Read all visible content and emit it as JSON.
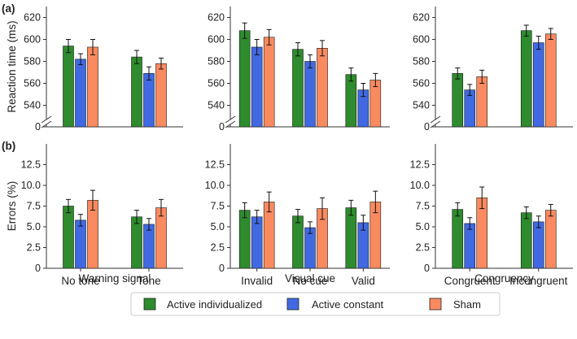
{
  "panel_labels": {
    "a": "(a)",
    "b": "(b)"
  },
  "colors": {
    "Active individualized": "#2e8b2e",
    "Active constant": "#4169e1",
    "Sham": "#fa8a60",
    "axis": "#333333",
    "error": "#111111"
  },
  "legend": [
    "Active individualized",
    "Active constant",
    "Sham"
  ],
  "chart_data": [
    {
      "id": "a1",
      "row": "a",
      "type": "bar",
      "title": "",
      "xlabel": "",
      "ylabel": "Reaction time (ms)",
      "ylim": [
        530,
        630
      ],
      "axis_break": true,
      "zero_label": "0",
      "yticks": [
        540,
        560,
        580,
        600,
        620
      ],
      "categories": [
        "No tone",
        "Tone"
      ],
      "series": [
        {
          "name": "Active individualized",
          "values": [
            594,
            584
          ],
          "errors": [
            6,
            6
          ]
        },
        {
          "name": "Active constant",
          "values": [
            582,
            569
          ],
          "errors": [
            5,
            6
          ]
        },
        {
          "name": "Sham",
          "values": [
            593,
            578
          ],
          "errors": [
            7,
            5
          ]
        }
      ]
    },
    {
      "id": "a2",
      "row": "a",
      "type": "bar",
      "title": "",
      "xlabel": "",
      "ylabel": "",
      "ylim": [
        530,
        630
      ],
      "axis_break": true,
      "zero_label": "0",
      "yticks": [
        540,
        560,
        580,
        600,
        620
      ],
      "categories": [
        "Invalid",
        "No cue",
        "Valid"
      ],
      "series": [
        {
          "name": "Active individualized",
          "values": [
            608,
            591,
            568
          ],
          "errors": [
            7,
            6,
            6
          ]
        },
        {
          "name": "Active constant",
          "values": [
            593,
            580,
            554
          ],
          "errors": [
            7,
            6,
            6
          ]
        },
        {
          "name": "Sham",
          "values": [
            602,
            592,
            563
          ],
          "errors": [
            7,
            7,
            6
          ]
        }
      ]
    },
    {
      "id": "a3",
      "row": "a",
      "type": "bar",
      "title": "",
      "xlabel": "",
      "ylabel": "",
      "ylim": [
        530,
        630
      ],
      "axis_break": true,
      "zero_label": "0",
      "yticks": [
        540,
        560,
        580,
        600,
        620
      ],
      "categories": [
        "Congruent",
        "Incongruent"
      ],
      "series": [
        {
          "name": "Active individualized",
          "values": [
            569,
            608
          ],
          "errors": [
            5,
            5
          ]
        },
        {
          "name": "Active constant",
          "values": [
            554,
            597
          ],
          "errors": [
            5,
            6
          ]
        },
        {
          "name": "Sham",
          "values": [
            566,
            605
          ],
          "errors": [
            6,
            5
          ]
        }
      ]
    },
    {
      "id": "b1",
      "row": "b",
      "type": "bar",
      "title": "",
      "xlabel": "Warning signal",
      "ylabel": "Errors (%)",
      "ylim": [
        0,
        15
      ],
      "yticks": [
        0,
        2.5,
        5.0,
        7.5,
        10.0,
        12.5
      ],
      "ytick_labels": [
        "0",
        "2.5",
        "5.0",
        "7.5",
        "10.0",
        "12.5"
      ],
      "categories": [
        "No tone",
        "Tone"
      ],
      "series": [
        {
          "name": "Active individualized",
          "values": [
            7.5,
            6.2
          ],
          "errors": [
            0.8,
            0.8
          ]
        },
        {
          "name": "Active constant",
          "values": [
            5.8,
            5.3
          ],
          "errors": [
            0.7,
            0.7
          ]
        },
        {
          "name": "Sham",
          "values": [
            8.2,
            7.3
          ],
          "errors": [
            1.2,
            1.0
          ]
        }
      ]
    },
    {
      "id": "b2",
      "row": "b",
      "type": "bar",
      "title": "",
      "xlabel": "Visual cue",
      "ylabel": "",
      "ylim": [
        0,
        15
      ],
      "yticks": [
        0,
        2.5,
        5.0,
        7.5,
        10.0,
        12.5
      ],
      "ytick_labels": [
        "0",
        "2.5",
        "5.0",
        "7.5",
        "10.0",
        "12.5"
      ],
      "categories": [
        "Invalid",
        "No cue",
        "Valid"
      ],
      "series": [
        {
          "name": "Active individualized",
          "values": [
            7.0,
            6.3,
            7.3
          ],
          "errors": [
            0.9,
            0.8,
            0.9
          ]
        },
        {
          "name": "Active constant",
          "values": [
            6.2,
            4.9,
            5.5
          ],
          "errors": [
            0.8,
            0.7,
            0.9
          ]
        },
        {
          "name": "Sham",
          "values": [
            8.0,
            7.2,
            8.0
          ],
          "errors": [
            1.2,
            1.3,
            1.3
          ]
        }
      ]
    },
    {
      "id": "b3",
      "row": "b",
      "type": "bar",
      "title": "",
      "xlabel": "Congruency",
      "ylabel": "",
      "ylim": [
        0,
        15
      ],
      "yticks": [
        0,
        2.5,
        5.0,
        7.5,
        10.0,
        12.5
      ],
      "ytick_labels": [
        "0",
        "2.5",
        "5.0",
        "7.5",
        "10.0",
        "12.5"
      ],
      "categories": [
        "Congruent",
        "Incongruent"
      ],
      "series": [
        {
          "name": "Active individualized",
          "values": [
            7.1,
            6.7
          ],
          "errors": [
            0.8,
            0.7
          ]
        },
        {
          "name": "Active constant",
          "values": [
            5.4,
            5.6
          ],
          "errors": [
            0.7,
            0.7
          ]
        },
        {
          "name": "Sham",
          "values": [
            8.5,
            7.0
          ],
          "errors": [
            1.3,
            0.7
          ]
        }
      ]
    }
  ]
}
